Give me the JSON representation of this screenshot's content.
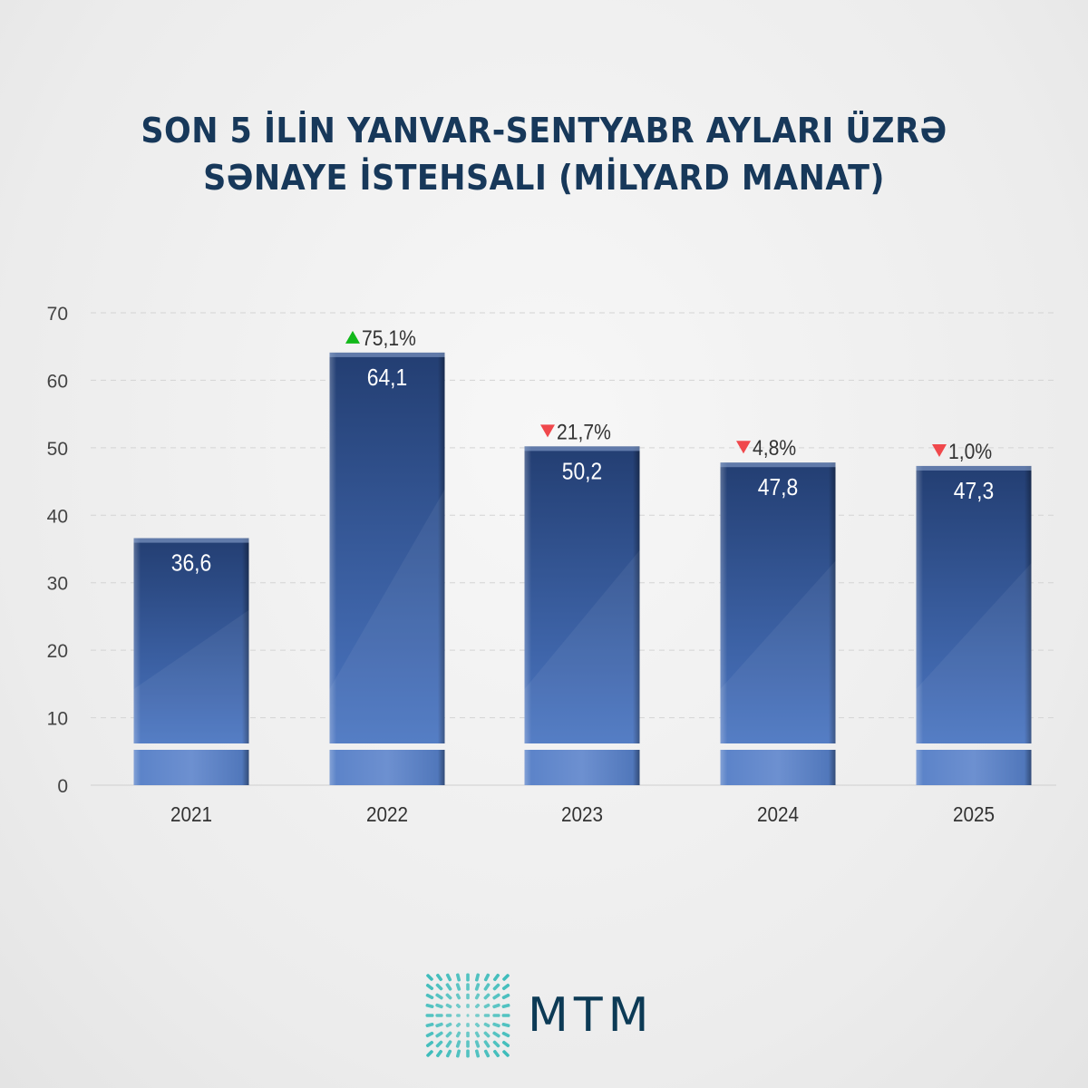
{
  "title_lines": [
    "SON 5 İLİN YANVAR-SENTYABR AYLARI ÜZRƏ",
    "SƏNAYE İSTEHSALI (MİLYARD MANAT)"
  ],
  "chart_data": {
    "type": "bar",
    "title": "SON 5 İLİN YANVAR-SENTYABR AYLARI ÜZRƏ SƏNAYE İSTEHSALI (MİLYARD MANAT)",
    "categories": [
      "2021",
      "2022",
      "2023",
      "2024",
      "2025"
    ],
    "values": [
      36.6,
      64.1,
      50.2,
      47.8,
      47.3
    ],
    "value_labels": [
      "36,6",
      "64,1",
      "50,2",
      "47,8",
      "47,3"
    ],
    "changes": [
      null,
      {
        "label": "75,1%",
        "direction": "up"
      },
      {
        "label": "21,7%",
        "direction": "down"
      },
      {
        "label": "4,8%",
        "direction": "down"
      },
      {
        "label": "1,0%",
        "direction": "down"
      }
    ],
    "ylim": [
      0,
      70
    ],
    "yticks": [
      "0",
      "10",
      "20",
      "30",
      "40",
      "50",
      "60",
      "70"
    ],
    "grid": true,
    "broken_axis": true,
    "colors": {
      "bar_top": "#243f73",
      "bar_bottom": "#4a74bf",
      "up": "#12b81a",
      "down": "#f0484c",
      "text": "#333333"
    }
  },
  "logo": {
    "text": "MTM",
    "color": "#0c3a55",
    "mark_color": "#2ab7b5"
  }
}
